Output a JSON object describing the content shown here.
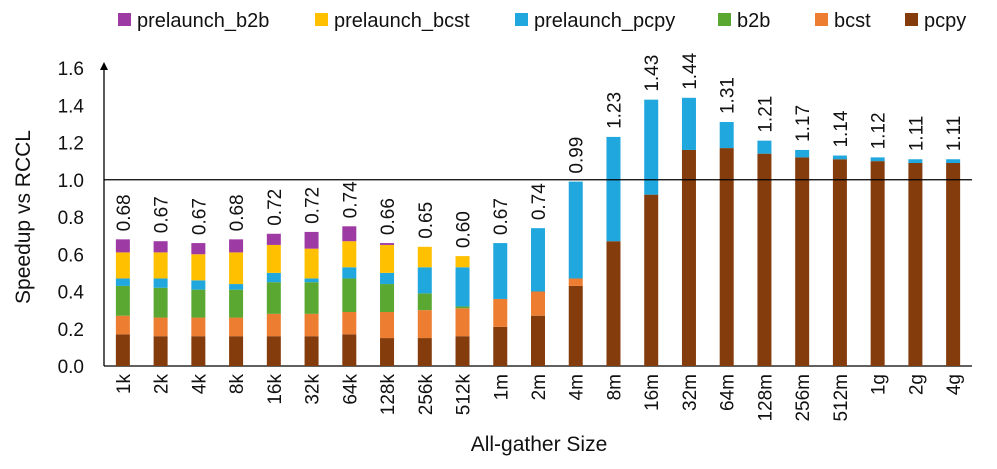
{
  "chart_data": {
    "type": "bar",
    "stacked": true,
    "xlabel": "All-gather Size",
    "ylabel": "Speedup vs RCCL",
    "ylim": [
      0,
      1.6
    ],
    "yticks": [
      "0.0",
      "0.2",
      "0.4",
      "0.6",
      "0.8",
      "1.0",
      "1.2",
      "1.4",
      "1.6"
    ],
    "reference_line": 1.0,
    "legend_position": "top",
    "categories": [
      "1k",
      "2k",
      "4k",
      "8k",
      "16k",
      "32k",
      "64k",
      "128k",
      "256k",
      "512k",
      "1m",
      "2m",
      "4m",
      "8m",
      "16m",
      "32m",
      "64m",
      "128m",
      "256m",
      "512m",
      "1g",
      "2g",
      "4g"
    ],
    "totals": [
      "0.68",
      "0.67",
      "0.67",
      "0.68",
      "0.72",
      "0.72",
      "0.74",
      "0.66",
      "0.65",
      "0.60",
      "0.67",
      "0.74",
      "0.99",
      "1.23",
      "1.43",
      "1.44",
      "1.31",
      "1.21",
      "1.17",
      "1.14",
      "1.12",
      "1.11",
      "1.11"
    ],
    "series": [
      {
        "name": "pcpy",
        "color": "#843C0C",
        "values": [
          0.17,
          0.16,
          0.16,
          0.16,
          0.16,
          0.16,
          0.17,
          0.15,
          0.15,
          0.16,
          0.21,
          0.27,
          0.43,
          0.67,
          0.92,
          1.16,
          1.17,
          1.14,
          1.12,
          1.11,
          1.1,
          1.09,
          1.09
        ]
      },
      {
        "name": "bcst",
        "color": "#ED7D31",
        "values": [
          0.1,
          0.1,
          0.1,
          0.1,
          0.12,
          0.12,
          0.12,
          0.14,
          0.15,
          0.15,
          0.15,
          0.13,
          0.04,
          0,
          0,
          0,
          0,
          0,
          0,
          0,
          0,
          0,
          0
        ]
      },
      {
        "name": "b2b",
        "color": "#5AA832",
        "values": [
          0.16,
          0.16,
          0.15,
          0.15,
          0.17,
          0.17,
          0.18,
          0.15,
          0.09,
          0.01,
          0,
          0,
          0,
          0,
          0,
          0,
          0,
          0,
          0,
          0,
          0,
          0,
          0
        ]
      },
      {
        "name": "prelaunch_pcpy",
        "color": "#1FA7DE",
        "values": [
          0.04,
          0.05,
          0.05,
          0.03,
          0.05,
          0.02,
          0.06,
          0.06,
          0.14,
          0.21,
          0.3,
          0.34,
          0.52,
          0.56,
          0.51,
          0.28,
          0.14,
          0.07,
          0.04,
          0.02,
          0.02,
          0.02,
          0.02
        ]
      },
      {
        "name": "prelaunch_bcst",
        "color": "#FFC000",
        "values": [
          0.14,
          0.14,
          0.14,
          0.17,
          0.15,
          0.16,
          0.14,
          0.15,
          0.11,
          0.06,
          0,
          0,
          0,
          0,
          0,
          0,
          0,
          0,
          0,
          0,
          0,
          0,
          0
        ]
      },
      {
        "name": "prelaunch_b2b",
        "color": "#9E3AA4",
        "values": [
          0.07,
          0.06,
          0.06,
          0.07,
          0.06,
          0.09,
          0.08,
          0.01,
          0,
          0,
          0,
          0,
          0,
          0,
          0,
          0,
          0,
          0,
          0,
          0,
          0,
          0,
          0
        ]
      }
    ],
    "legend_order": [
      "prelaunch_b2b",
      "prelaunch_bcst",
      "prelaunch_pcpy",
      "b2b",
      "bcst",
      "pcpy"
    ]
  }
}
